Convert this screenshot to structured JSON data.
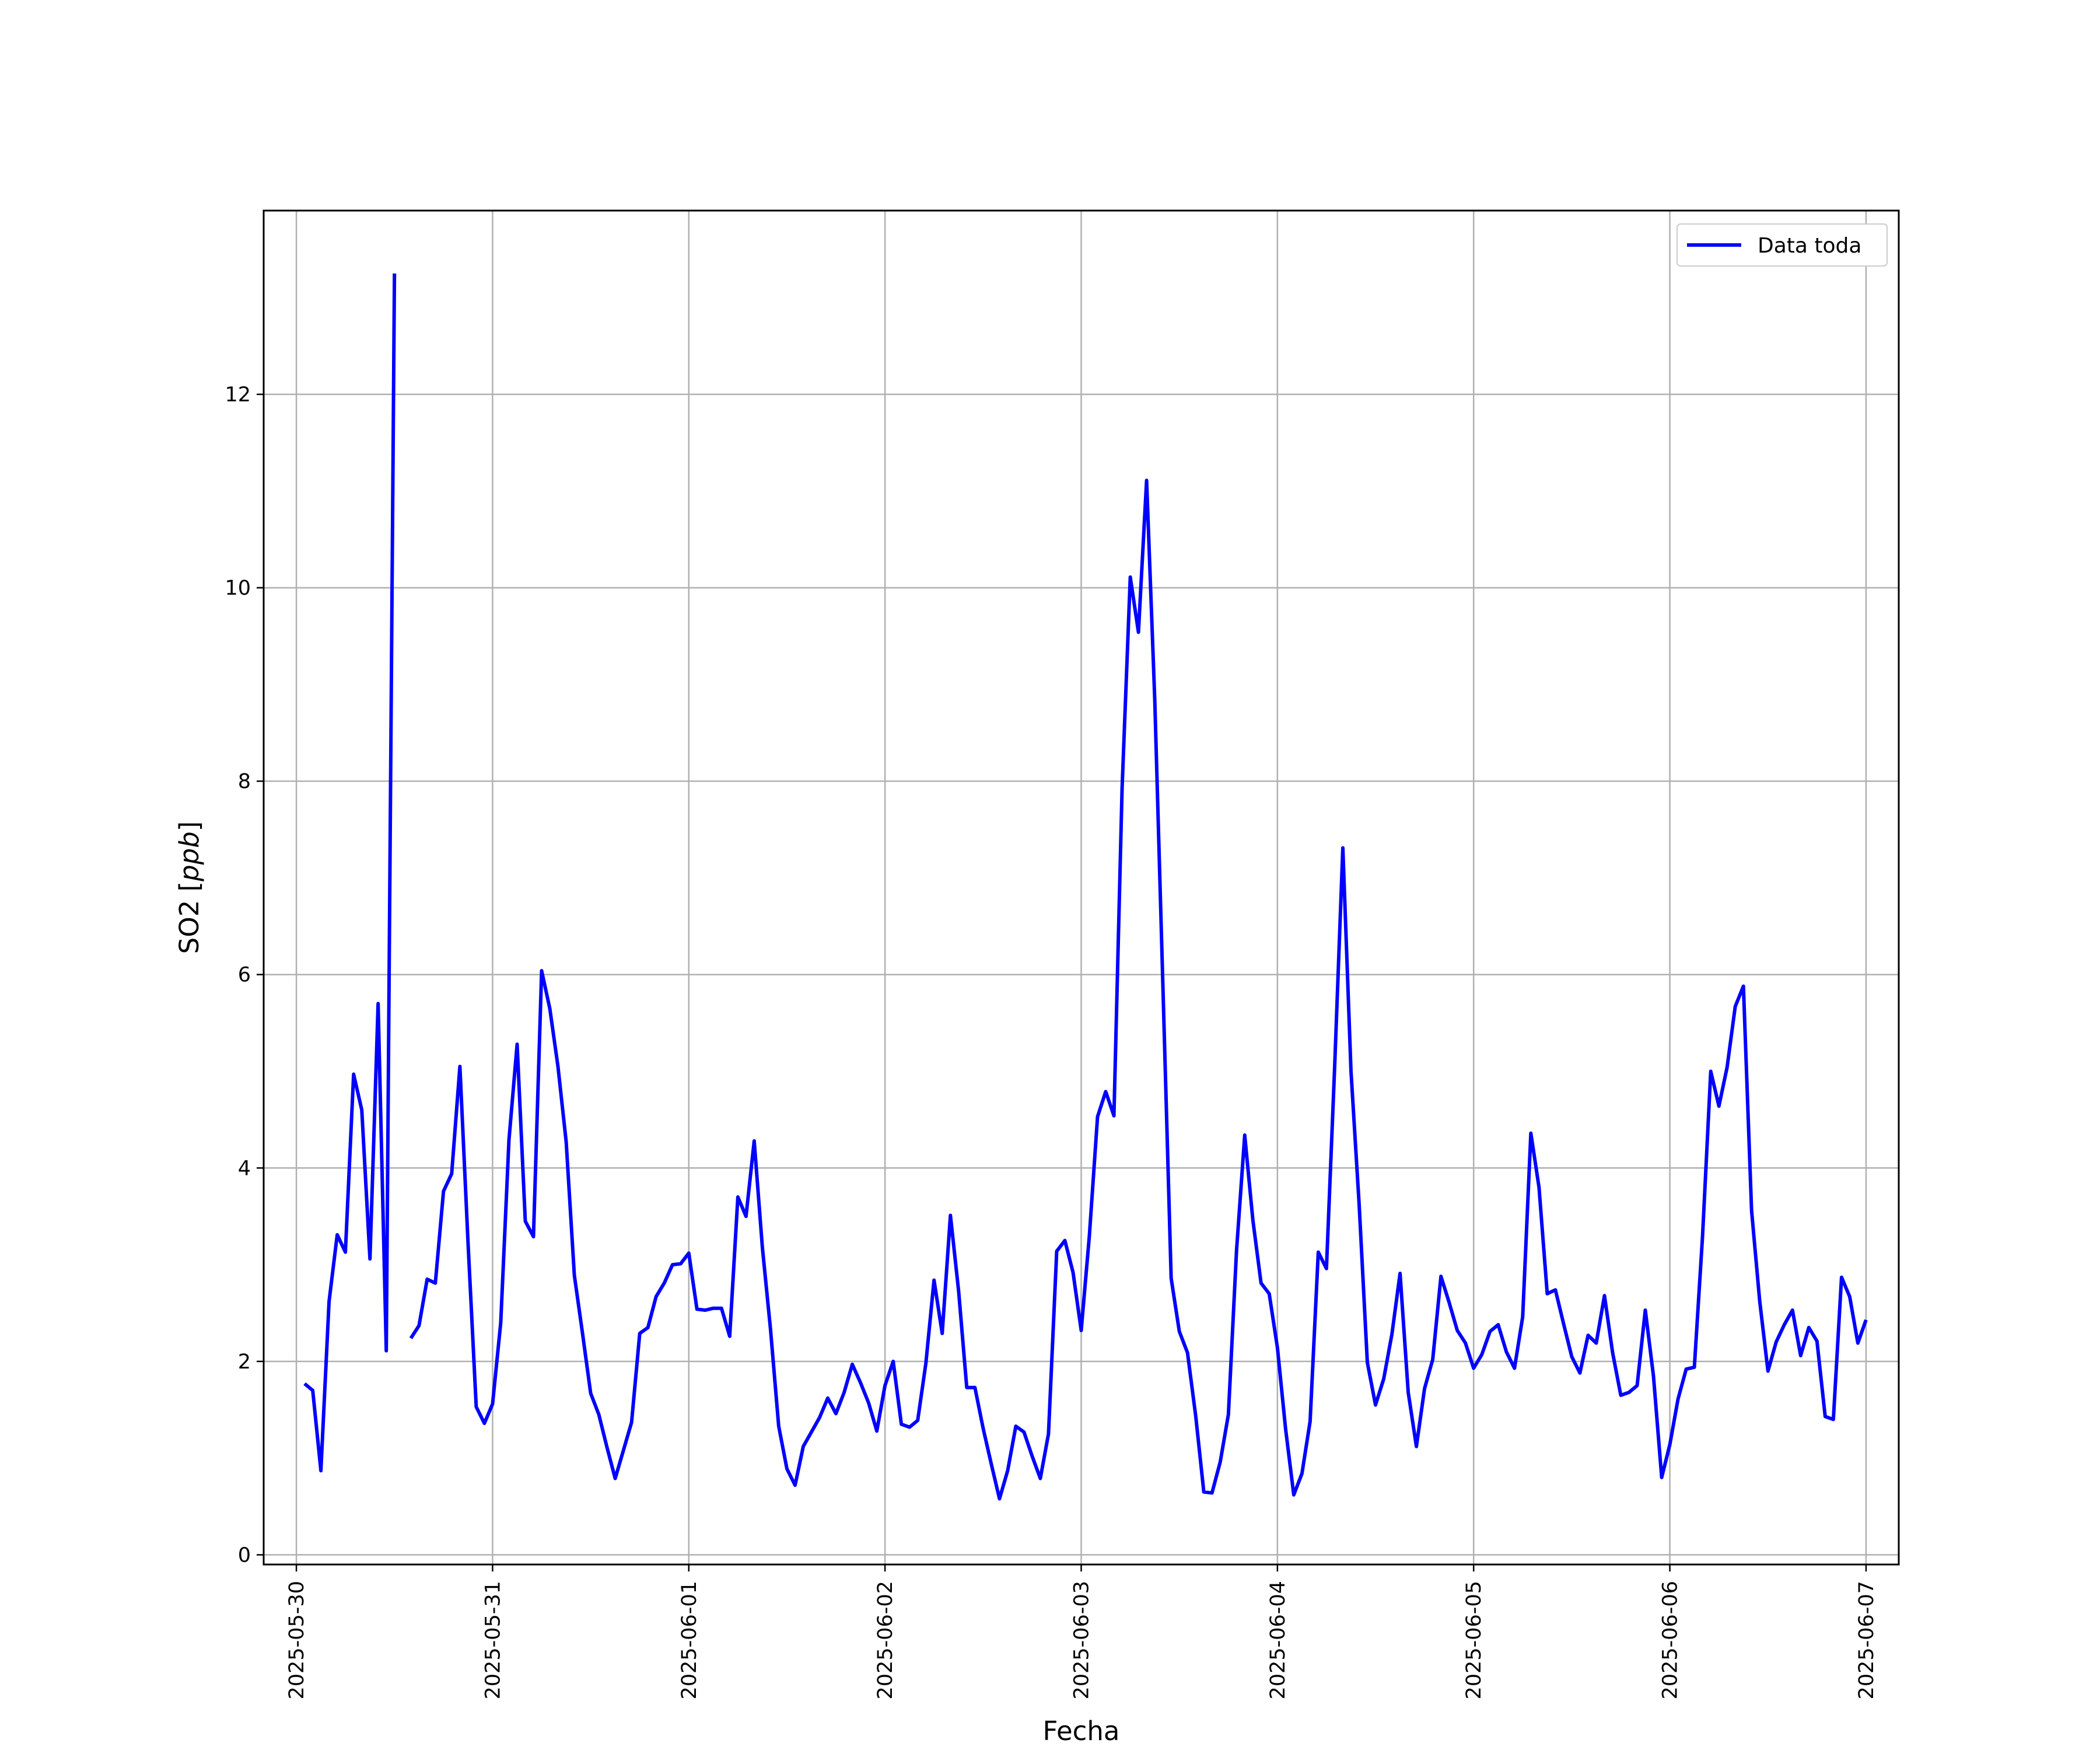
{
  "chart_data": {
    "type": "line",
    "title": "",
    "xlabel": "Fecha",
    "ylabel_prefix": "SO2 [",
    "ylabel_unit": "ppb",
    "ylabel_suffix": "]",
    "grid": true,
    "legend_position": "top-right",
    "xlim": [
      "2025-05-29T20:00",
      "2025-06-07T04:00"
    ],
    "ylim": [
      -0.1,
      13.9
    ],
    "x_ticks": [
      "2025-05-30",
      "2025-05-31",
      "2025-06-01",
      "2025-06-02",
      "2025-06-03",
      "2025-06-04",
      "2025-06-05",
      "2025-06-06",
      "2025-06-07"
    ],
    "y_ticks": [
      0,
      2,
      4,
      6,
      8,
      10,
      12
    ],
    "series": [
      {
        "name": "Data toda",
        "color": "#0000ff",
        "start": "2025-05-30T01:00",
        "step_hours": 1,
        "values": [
          1.77,
          1.7,
          0.87,
          2.62,
          3.31,
          3.13,
          4.97,
          4.6,
          3.06,
          5.7,
          2.11,
          13.25,
          null,
          2.24,
          2.37,
          2.85,
          2.81,
          3.76,
          3.94,
          5.05,
          3.22,
          1.53,
          1.36,
          1.56,
          2.4,
          4.29,
          5.28,
          3.45,
          3.29,
          6.04,
          5.65,
          5.05,
          4.27,
          2.89,
          2.29,
          1.67,
          1.45,
          1.11,
          0.79,
          1.08,
          1.37,
          2.29,
          2.35,
          2.67,
          2.81,
          3.0,
          3.01,
          3.12,
          2.54,
          2.53,
          2.55,
          2.55,
          2.26,
          3.7,
          3.5,
          4.28,
          3.18,
          2.33,
          1.33,
          0.89,
          0.72,
          1.12,
          1.27,
          1.42,
          1.62,
          1.46,
          1.68,
          1.97,
          1.78,
          1.57,
          1.28,
          1.75,
          2.0,
          1.35,
          1.32,
          1.39,
          1.98,
          2.84,
          2.29,
          3.51,
          2.73,
          1.73,
          1.73,
          1.31,
          0.94,
          0.58,
          0.87,
          1.33,
          1.27,
          1.02,
          0.79,
          1.25,
          3.14,
          3.25,
          2.92,
          2.32,
          3.3,
          4.53,
          4.79,
          4.54,
          7.93,
          10.11,
          9.54,
          11.11,
          8.84,
          5.85,
          2.86,
          2.31,
          2.09,
          1.44,
          0.65,
          0.64,
          0.96,
          1.45,
          3.15,
          4.34,
          3.46,
          2.81,
          2.7,
          2.14,
          1.3,
          0.62,
          0.84,
          1.38,
          3.13,
          2.96,
          5.05,
          7.31,
          5.0,
          3.62,
          1.99,
          1.55,
          1.82,
          2.28,
          2.91,
          1.68,
          1.12,
          1.72,
          2.02,
          2.88,
          2.61,
          2.32,
          2.19,
          1.93,
          2.07,
          2.31,
          2.38,
          2.1,
          1.93,
          2.46,
          4.36,
          3.8,
          2.7,
          2.74,
          2.39,
          2.05,
          1.88,
          2.27,
          2.19,
          2.68,
          2.09,
          1.65,
          1.68,
          1.75,
          2.53,
          1.85,
          0.8,
          1.14,
          1.61,
          1.92,
          1.94,
          3.29,
          5.0,
          4.64,
          5.04,
          5.67,
          5.88,
          3.56,
          2.62,
          1.9,
          2.2,
          2.38,
          2.53,
          2.06,
          2.35,
          2.21,
          1.43,
          1.4,
          2.87,
          2.67,
          2.19,
          2.43
        ]
      }
    ]
  }
}
